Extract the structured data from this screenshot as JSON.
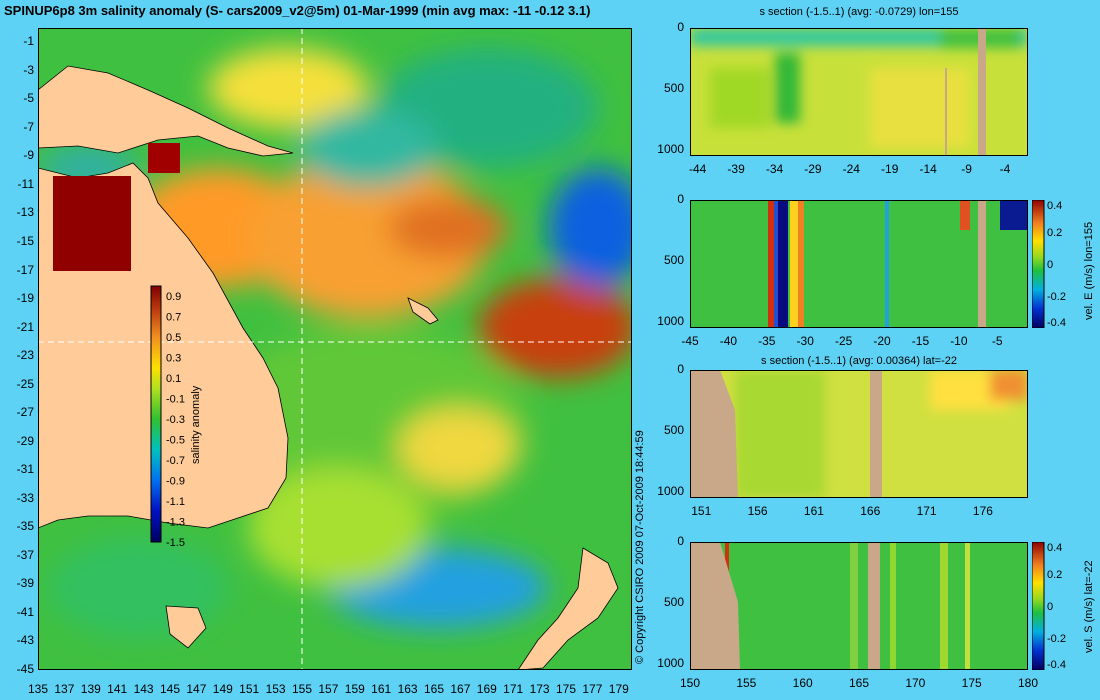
{
  "main_title": "SPINUP6p8 3m salinity anomaly (S- cars2009_v2@5m) 01-Mar-1999 (min avg max: -11 -0.12 3.1)",
  "copyright": "© Copyright CSIRO 2009  07-Oct-2009 18:44:59",
  "colors": {
    "land": "#ffcc99",
    "section_land": "#c8a888",
    "background": "#5ed2f5",
    "crosshair": "#ffffff"
  },
  "chart_data": [
    {
      "type": "heatmap",
      "title": "SPINUP6p8 3m salinity anomaly (S- cars2009_v2@5m) 01-Mar-1999 (min avg max: -11 -0.12 3.1)",
      "x_ticks": [
        "135",
        "137",
        "139",
        "141",
        "143",
        "145",
        "147",
        "149",
        "151",
        "153",
        "155",
        "157",
        "159",
        "161",
        "163",
        "165",
        "167",
        "169",
        "171",
        "173",
        "175",
        "177",
        "179"
      ],
      "y_ticks": [
        "-1",
        "-3",
        "-5",
        "-7",
        "-9",
        "-11",
        "-13",
        "-15",
        "-17",
        "-19",
        "-21",
        "-23",
        "-25",
        "-27",
        "-29",
        "-31",
        "-33",
        "-35",
        "-37",
        "-39",
        "-41",
        "-43",
        "-45"
      ],
      "xlim": [
        135,
        180
      ],
      "ylim": [
        -45,
        0
      ],
      "crosshair": {
        "lon": 155,
        "lat": -22
      },
      "colorbar": {
        "label": "salinity anomaly",
        "ticks": [
          "0.9",
          "0.7",
          "0.5",
          "0.3",
          "0.1",
          "-0.1",
          "-0.3",
          "-0.5",
          "-0.7",
          "-0.9",
          "-1.1",
          "-1.3",
          "-1.5"
        ],
        "range": [
          -1.5,
          1.0
        ]
      }
    },
    {
      "type": "heatmap",
      "title": "s section (-1.5..1) (avg: -0.0729) lon=155",
      "x_ticks": [
        "-44",
        "-39",
        "-34",
        "-29",
        "-24",
        "-19",
        "-14",
        "-9",
        "-4"
      ],
      "y_ticks": [
        "0",
        "500",
        "1000"
      ],
      "xlim": [
        -45,
        -1
      ],
      "ylim": [
        0,
        1050
      ]
    },
    {
      "type": "heatmap",
      "title": "",
      "x_ticks": [
        "-45",
        "-40",
        "-35",
        "-30",
        "-25",
        "-20",
        "-15",
        "-10",
        "-5"
      ],
      "y_ticks": [
        "0",
        "500",
        "1000"
      ],
      "xlim": [
        -45,
        -1
      ],
      "ylim": [
        0,
        1050
      ],
      "colorbar": {
        "label": "vel. E (m/s) lon=155",
        "ticks": [
          "0.4",
          "0.2",
          "0",
          "-0.2",
          "-0.4"
        ],
        "range": [
          -0.4,
          0.4
        ]
      }
    },
    {
      "type": "heatmap",
      "title": "s section (-1.5..1) (avg: 0.00364) lat=-22",
      "x_ticks": [
        "151",
        "156",
        "161",
        "166",
        "171",
        "176"
      ],
      "y_ticks": [
        "0",
        "500",
        "1000"
      ],
      "xlim": [
        150,
        180
      ],
      "ylim": [
        0,
        1050
      ]
    },
    {
      "type": "heatmap",
      "title": "",
      "x_ticks": [
        "150",
        "155",
        "160",
        "165",
        "170",
        "175",
        "180"
      ],
      "y_ticks": [
        "0",
        "500",
        "1000"
      ],
      "xlim": [
        150,
        180
      ],
      "ylim": [
        0,
        1050
      ],
      "colorbar": {
        "label": "vel. S (m/s) lat=-22",
        "ticks": [
          "0.4",
          "0.2",
          "0",
          "-0.2",
          "-0.4"
        ],
        "range": [
          -0.4,
          0.4
        ]
      }
    }
  ]
}
